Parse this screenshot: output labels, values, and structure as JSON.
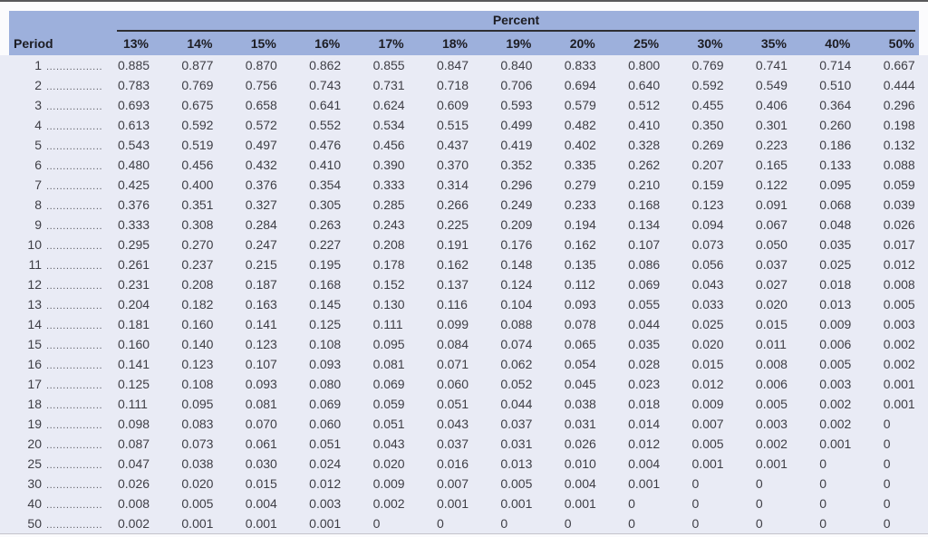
{
  "table": {
    "group_header": "Percent",
    "period_header": "Period",
    "leader_dots": "......................",
    "columns": [
      "13%",
      "14%",
      "15%",
      "16%",
      "17%",
      "18%",
      "19%",
      "20%",
      "25%",
      "30%",
      "35%",
      "40%",
      "50%"
    ],
    "rows": [
      {
        "period": "1",
        "values": [
          "0.885",
          "0.877",
          "0.870",
          "0.862",
          "0.855",
          "0.847",
          "0.840",
          "0.833",
          "0.800",
          "0.769",
          "0.741",
          "0.714",
          "0.667"
        ]
      },
      {
        "period": "2",
        "values": [
          "0.783",
          "0.769",
          "0.756",
          "0.743",
          "0.731",
          "0.718",
          "0.706",
          "0.694",
          "0.640",
          "0.592",
          "0.549",
          "0.510",
          "0.444"
        ]
      },
      {
        "period": "3",
        "values": [
          "0.693",
          "0.675",
          "0.658",
          "0.641",
          "0.624",
          "0.609",
          "0.593",
          "0.579",
          "0.512",
          "0.455",
          "0.406",
          "0.364",
          "0.296"
        ]
      },
      {
        "period": "4",
        "values": [
          "0.613",
          "0.592",
          "0.572",
          "0.552",
          "0.534",
          "0.515",
          "0.499",
          "0.482",
          "0.410",
          "0.350",
          "0.301",
          "0.260",
          "0.198"
        ]
      },
      {
        "period": "5",
        "values": [
          "0.543",
          "0.519",
          "0.497",
          "0.476",
          "0.456",
          "0.437",
          "0.419",
          "0.402",
          "0.328",
          "0.269",
          "0.223",
          "0.186",
          "0.132"
        ]
      },
      {
        "period": "6",
        "values": [
          "0.480",
          "0.456",
          "0.432",
          "0.410",
          "0.390",
          "0.370",
          "0.352",
          "0.335",
          "0.262",
          "0.207",
          "0.165",
          "0.133",
          "0.088"
        ]
      },
      {
        "period": "7",
        "values": [
          "0.425",
          "0.400",
          "0.376",
          "0.354",
          "0.333",
          "0.314",
          "0.296",
          "0.279",
          "0.210",
          "0.159",
          "0.122",
          "0.095",
          "0.059"
        ]
      },
      {
        "period": "8",
        "values": [
          "0.376",
          "0.351",
          "0.327",
          "0.305",
          "0.285",
          "0.266",
          "0.249",
          "0.233",
          "0.168",
          "0.123",
          "0.091",
          "0.068",
          "0.039"
        ]
      },
      {
        "period": "9",
        "values": [
          "0.333",
          "0.308",
          "0.284",
          "0.263",
          "0.243",
          "0.225",
          "0.209",
          "0.194",
          "0.134",
          "0.094",
          "0.067",
          "0.048",
          "0.026"
        ]
      },
      {
        "period": "10",
        "values": [
          "0.295",
          "0.270",
          "0.247",
          "0.227",
          "0.208",
          "0.191",
          "0.176",
          "0.162",
          "0.107",
          "0.073",
          "0.050",
          "0.035",
          "0.017"
        ]
      },
      {
        "period": "11",
        "values": [
          "0.261",
          "0.237",
          "0.215",
          "0.195",
          "0.178",
          "0.162",
          "0.148",
          "0.135",
          "0.086",
          "0.056",
          "0.037",
          "0.025",
          "0.012"
        ]
      },
      {
        "period": "12",
        "values": [
          "0.231",
          "0.208",
          "0.187",
          "0.168",
          "0.152",
          "0.137",
          "0.124",
          "0.112",
          "0.069",
          "0.043",
          "0.027",
          "0.018",
          "0.008"
        ]
      },
      {
        "period": "13",
        "values": [
          "0.204",
          "0.182",
          "0.163",
          "0.145",
          "0.130",
          "0.116",
          "0.104",
          "0.093",
          "0.055",
          "0.033",
          "0.020",
          "0.013",
          "0.005"
        ]
      },
      {
        "period": "14",
        "values": [
          "0.181",
          "0.160",
          "0.141",
          "0.125",
          "0.111",
          "0.099",
          "0.088",
          "0.078",
          "0.044",
          "0.025",
          "0.015",
          "0.009",
          "0.003"
        ]
      },
      {
        "period": "15",
        "values": [
          "0.160",
          "0.140",
          "0.123",
          "0.108",
          "0.095",
          "0.084",
          "0.074",
          "0.065",
          "0.035",
          "0.020",
          "0.011",
          "0.006",
          "0.002"
        ]
      },
      {
        "period": "16",
        "values": [
          "0.141",
          "0.123",
          "0.107",
          "0.093",
          "0.081",
          "0.071",
          "0.062",
          "0.054",
          "0.028",
          "0.015",
          "0.008",
          "0.005",
          "0.002"
        ]
      },
      {
        "period": "17",
        "values": [
          "0.125",
          "0.108",
          "0.093",
          "0.080",
          "0.069",
          "0.060",
          "0.052",
          "0.045",
          "0.023",
          "0.012",
          "0.006",
          "0.003",
          "0.001"
        ]
      },
      {
        "period": "18",
        "values": [
          "0.111",
          "0.095",
          "0.081",
          "0.069",
          "0.059",
          "0.051",
          "0.044",
          "0.038",
          "0.018",
          "0.009",
          "0.005",
          "0.002",
          "0.001"
        ]
      },
      {
        "period": "19",
        "values": [
          "0.098",
          "0.083",
          "0.070",
          "0.060",
          "0.051",
          "0.043",
          "0.037",
          "0.031",
          "0.014",
          "0.007",
          "0.003",
          "0.002",
          "0"
        ]
      },
      {
        "period": "20",
        "values": [
          "0.087",
          "0.073",
          "0.061",
          "0.051",
          "0.043",
          "0.037",
          "0.031",
          "0.026",
          "0.012",
          "0.005",
          "0.002",
          "0.001",
          "0"
        ]
      },
      {
        "period": "25",
        "values": [
          "0.047",
          "0.038",
          "0.030",
          "0.024",
          "0.020",
          "0.016",
          "0.013",
          "0.010",
          "0.004",
          "0.001",
          "0.001",
          "0",
          "0"
        ]
      },
      {
        "period": "30",
        "values": [
          "0.026",
          "0.020",
          "0.015",
          "0.012",
          "0.009",
          "0.007",
          "0.005",
          "0.004",
          "0.001",
          "0",
          "0",
          "0",
          "0"
        ]
      },
      {
        "period": "40",
        "values": [
          "0.008",
          "0.005",
          "0.004",
          "0.003",
          "0.002",
          "0.001",
          "0.001",
          "0.001",
          "0",
          "0",
          "0",
          "0",
          "0"
        ]
      },
      {
        "period": "50",
        "values": [
          "0.002",
          "0.001",
          "0.001",
          "0.001",
          "0",
          "0",
          "0",
          "0",
          "0",
          "0",
          "0",
          "0",
          "0"
        ]
      }
    ]
  },
  "colors": {
    "band_bg": "#9db0dc",
    "body_bg": "#e9ebf5",
    "page_bg": "#fbfbfd",
    "top_border": "#58585b",
    "bottom_border": "#c4c4cb"
  }
}
